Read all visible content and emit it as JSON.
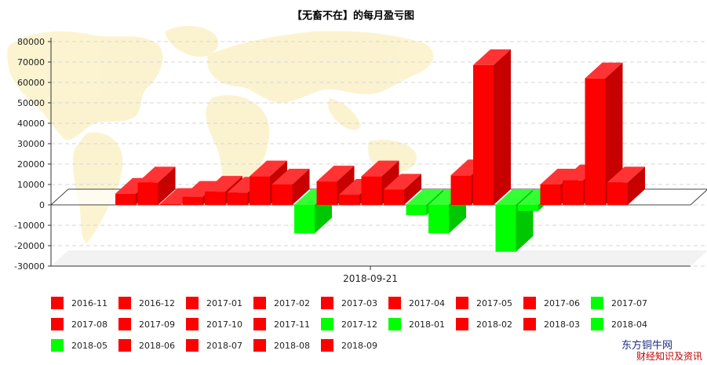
{
  "chart_data": {
    "type": "bar",
    "title": "【无畜不在】的每月盈亏图",
    "xlabel": "2018-09-21",
    "ylabel": "",
    "ylim": [
      -30000,
      80000
    ],
    "yticks": [
      80000,
      70000,
      60000,
      50000,
      40000,
      30000,
      20000,
      10000,
      0,
      -10000,
      -20000,
      -30000
    ],
    "grid": true,
    "legend_position": "bottom",
    "categories": [
      "2016-11",
      "2016-12",
      "2017-01",
      "2017-02",
      "2017-03",
      "2017-04",
      "2017-05",
      "2017-06",
      "2017-07",
      "2017-08",
      "2017-09",
      "2017-10",
      "2017-11",
      "2017-12",
      "2018-01",
      "2018-02",
      "2018-03",
      "2018-04",
      "2018-05",
      "2018-06",
      "2018-07",
      "2018-08",
      "2018-09"
    ],
    "values": [
      5500,
      11000,
      500,
      4000,
      6500,
      6000,
      14000,
      10000,
      -14000,
      11500,
      5000,
      14000,
      7500,
      -5000,
      -14000,
      14500,
      68500,
      -23000,
      -3000,
      10000,
      12000,
      62000,
      11000
    ],
    "colors": {
      "positive": "#ff0000",
      "negative": "#00ff00"
    }
  },
  "watermark": {
    "line1": "东方铜牛网",
    "line2": "财经知识及资讯"
  }
}
